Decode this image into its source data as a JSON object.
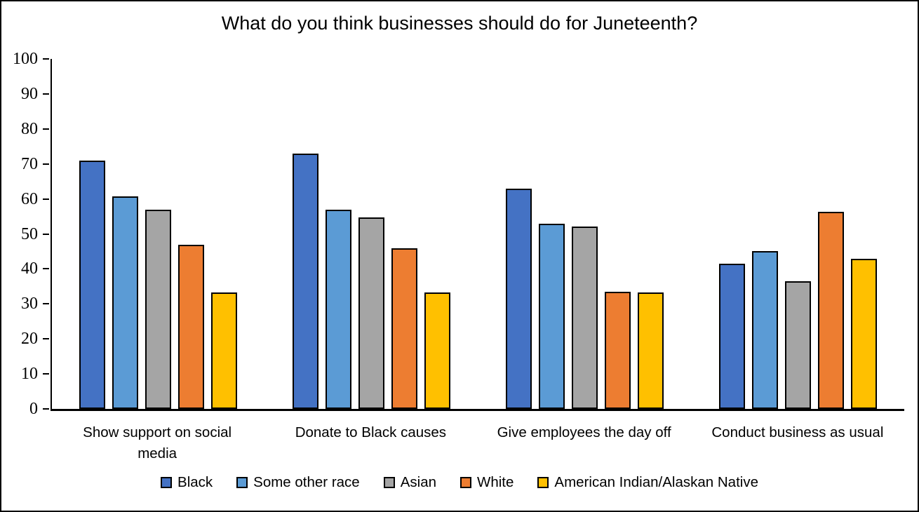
{
  "chart_data": {
    "type": "bar",
    "title": "What do you think businesses should do for Juneteenth?",
    "categories": [
      "Show support on social media",
      "Donate to Black causes",
      "Give employees the day off",
      "Conduct business as usual"
    ],
    "series": [
      {
        "name": "Black",
        "color": "#4472C4",
        "values": [
          71.0,
          72.9,
          63.0,
          41.4
        ]
      },
      {
        "name": "Some other race",
        "color": "#5B9BD5",
        "values": [
          60.7,
          57.0,
          52.9,
          45.0
        ]
      },
      {
        "name": "Asian",
        "color": "#A5A5A5",
        "values": [
          57.0,
          54.7,
          52.2,
          36.5
        ]
      },
      {
        "name": "White",
        "color": "#ED7D31",
        "values": [
          46.8,
          45.8,
          33.4,
          56.4
        ]
      },
      {
        "name": "American Indian/Alaskan Native",
        "color": "#FFC000",
        "values": [
          33.2,
          33.2,
          33.2,
          42.8
        ]
      }
    ],
    "xlabel": "",
    "ylabel": "",
    "ylim": [
      0,
      100
    ],
    "yticks": [
      0,
      10,
      20,
      30,
      40,
      50,
      60,
      70,
      80,
      90,
      100
    ],
    "grid": false,
    "legend_position": "bottom",
    "bar_outline_color": "#000000",
    "axis_color": "#000000"
  }
}
